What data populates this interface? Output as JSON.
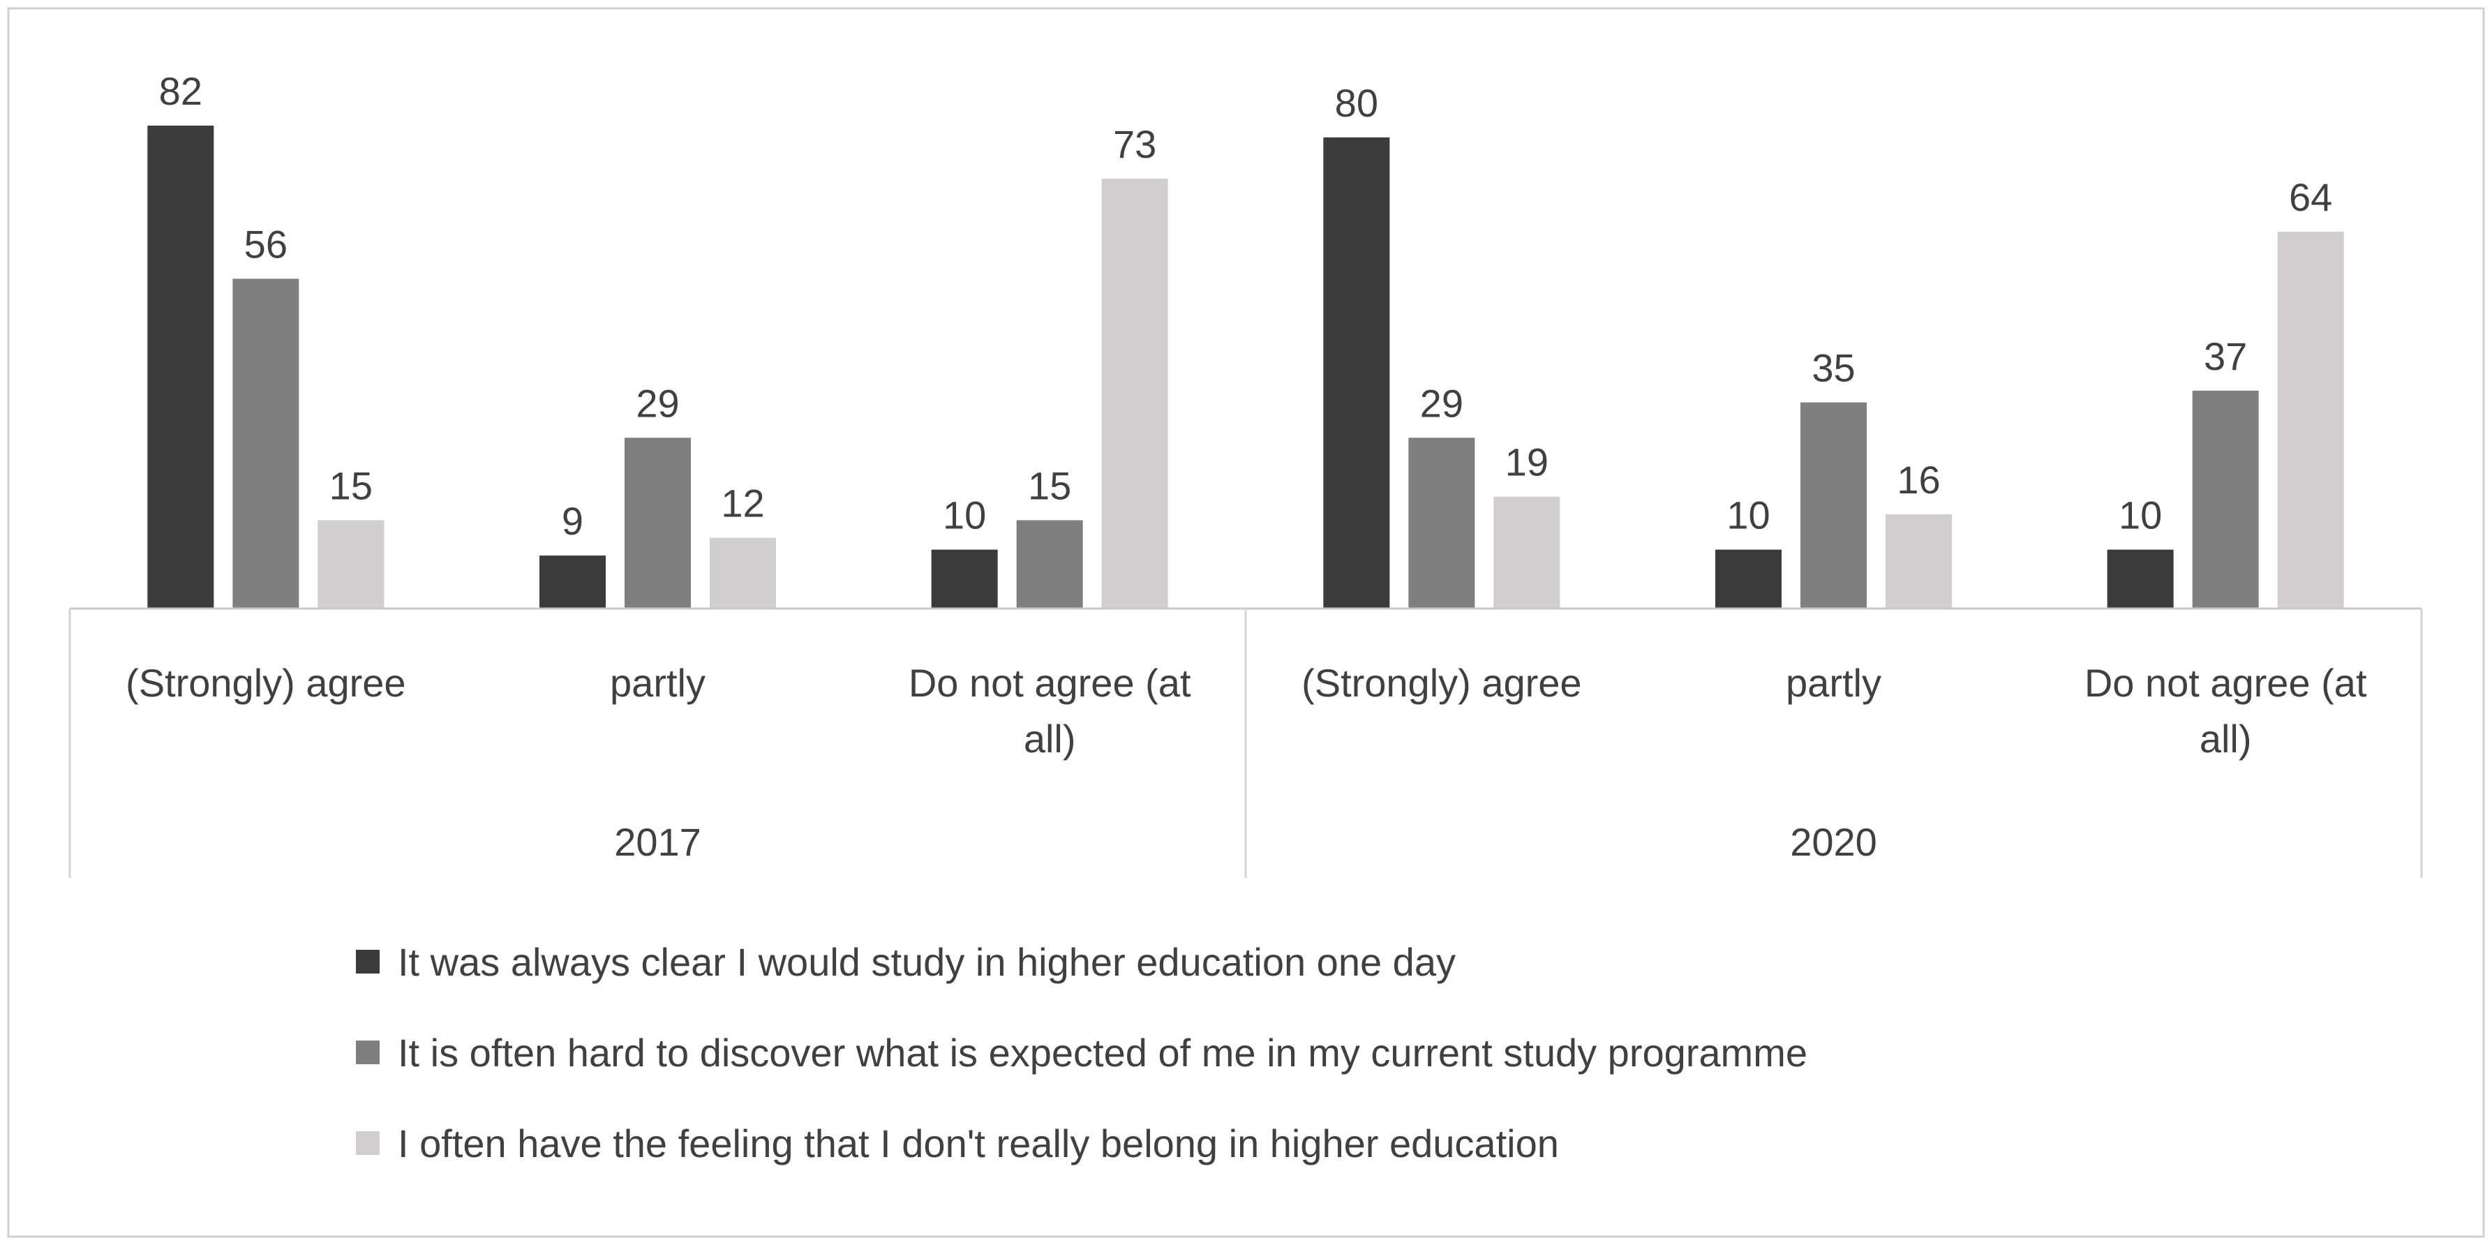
{
  "chart_data": {
    "type": "bar",
    "title": "",
    "xlabel": "",
    "ylabel": "",
    "ylim": [
      0,
      82
    ],
    "grid": false,
    "legend_placement": "bottom",
    "groups": [
      {
        "label": "2017",
        "categories": [
          "(Strongly) agree",
          "partly",
          "Do not agree (at all)"
        ]
      },
      {
        "label": "2020",
        "categories": [
          "(Strongly) agree",
          "partly",
          "Do not agree (at all)"
        ]
      }
    ],
    "category_lines": [
      [
        "(Strongly) agree"
      ],
      [
        "partly"
      ],
      [
        "Do not agree (at",
        "all)"
      ]
    ],
    "series": [
      {
        "name": "It was always clear I would study in higher education one day",
        "color": "#3b3b3b",
        "values": [
          82,
          9,
          10,
          80,
          10,
          10
        ]
      },
      {
        "name": "It is often hard to discover what is expected of me in my current study programme",
        "color": "#7f7f7f",
        "values": [
          56,
          29,
          15,
          29,
          35,
          37
        ]
      },
      {
        "name": "I often have the feeling that I don't really belong in higher education",
        "color": "#d0cece",
        "values": [
          15,
          12,
          73,
          19,
          16,
          64
        ]
      }
    ]
  }
}
